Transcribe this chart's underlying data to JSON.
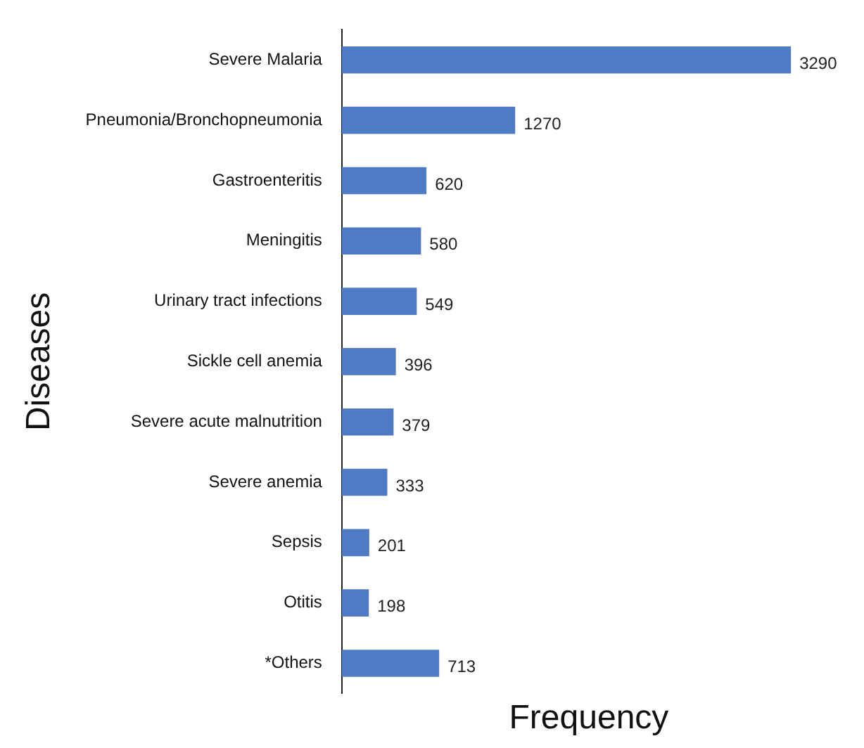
{
  "chart_data": {
    "type": "bar",
    "orientation": "horizontal",
    "xlabel": "Frequency",
    "ylabel": "Diseases",
    "categories": [
      "Severe Malaria",
      "Pneumonia/Bronchopneumonia",
      "Gastroenteritis",
      "Meningitis",
      "Urinary tract infections",
      "Sickle cell anemia",
      "Severe acute malnutrition",
      "Severe anemia",
      "Sepsis",
      "Otitis",
      "*Others"
    ],
    "values": [
      3290,
      1270,
      620,
      580,
      549,
      396,
      379,
      333,
      201,
      198,
      713
    ],
    "color": "#4f7bc4",
    "data_labels": true,
    "grid": false,
    "legend": false
  }
}
